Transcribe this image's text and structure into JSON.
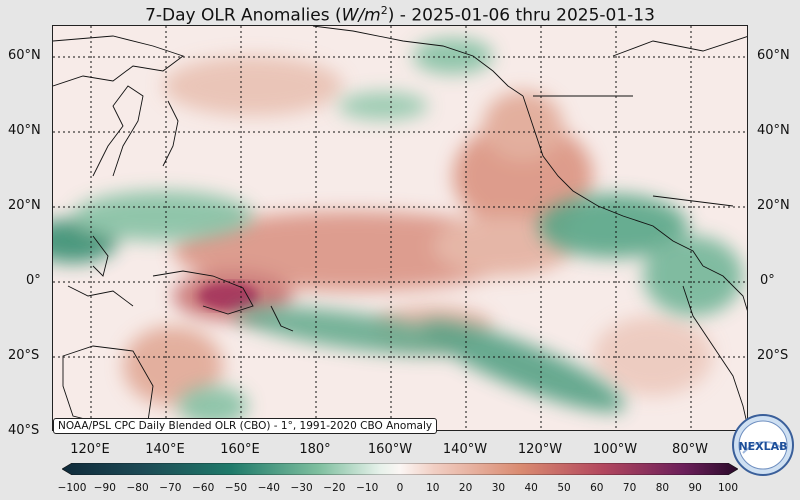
{
  "title_prefix": "7-Day OLR Anomalies (",
  "title_units": "W/m",
  "title_units_exp": "2",
  "title_suffix": ") - 2025-01-06 thru 2025-01-13",
  "lat_labels": [
    "60°N",
    "40°N",
    "20°N",
    "0°",
    "20°S",
    "40°S"
  ],
  "lon_labels": [
    "120°E",
    "140°E",
    "160°E",
    "180°",
    "160°W",
    "140°W",
    "120°W",
    "100°W",
    "80°W"
  ],
  "credit": "NOAA/PSL CPC Daily Blended OLR (CBO) - 1°, 1991-2020 CBO Anomaly",
  "logo_text": "NEXLAB",
  "colorbar": {
    "ticks": [
      "−100",
      "−90",
      "−80",
      "−70",
      "−60",
      "−50",
      "−40",
      "−30",
      "−20",
      "−10",
      "0",
      "10",
      "20",
      "30",
      "40",
      "50",
      "60",
      "70",
      "80",
      "90",
      "100"
    ],
    "min": -100,
    "max": 100,
    "negative_color": "#1f6f5c",
    "positive_color": "#8e2a5e"
  },
  "colors": {
    "positive": "#c86a55",
    "negative": "#3a9a78",
    "strong_positive": "#9a2a5a"
  }
}
